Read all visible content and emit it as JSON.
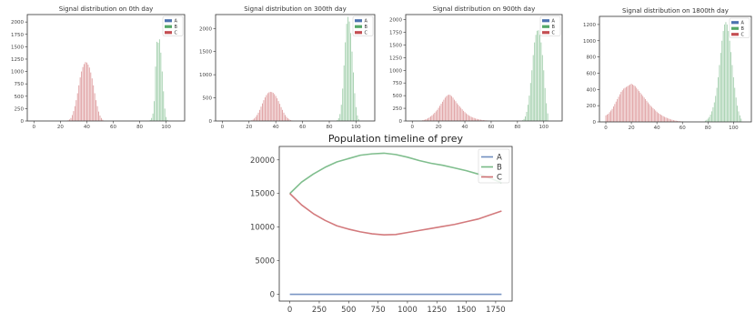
{
  "colors": {
    "A": "#4c72b0",
    "B": "#55a868",
    "C": "#c44e52"
  },
  "chart_data": [
    {
      "type": "bar",
      "title": "Signal distribution on 0th day",
      "legend": {
        "position": "top-right",
        "entries": [
          "A",
          "B",
          "C"
        ]
      },
      "xlim": [
        -5,
        114
      ],
      "ylim": [
        0,
        2150
      ],
      "xticks": [
        0,
        20,
        40,
        60,
        80,
        100
      ],
      "yticks": [
        0,
        250,
        500,
        750,
        1000,
        1250,
        1500,
        1750,
        2000
      ],
      "series": [
        {
          "name": "A",
          "x": [],
          "values": []
        },
        {
          "name": "B",
          "x": [
            88,
            89,
            90,
            91,
            92,
            93,
            94,
            95,
            96,
            97,
            98,
            99,
            100,
            101
          ],
          "values": [
            20,
            60,
            150,
            400,
            1100,
            1600,
            1580,
            1650,
            1380,
            1000,
            600,
            250,
            80,
            20
          ]
        },
        {
          "name": "C",
          "x": [
            26,
            27,
            28,
            29,
            30,
            31,
            32,
            33,
            34,
            35,
            36,
            37,
            38,
            39,
            40,
            41,
            42,
            43,
            44,
            45,
            46,
            47,
            48,
            49,
            50,
            51,
            52
          ],
          "values": [
            15,
            30,
            60,
            120,
            200,
            300,
            420,
            560,
            720,
            880,
            1000,
            1090,
            1150,
            1190,
            1180,
            1140,
            1080,
            980,
            860,
            720,
            560,
            420,
            300,
            190,
            110,
            60,
            25
          ]
        }
      ]
    },
    {
      "type": "bar",
      "title": "Signal distribution on 300th day",
      "legend": {
        "position": "top-right",
        "entries": [
          "A",
          "B",
          "C"
        ]
      },
      "xlim": [
        -5,
        114
      ],
      "ylim": [
        0,
        2300
      ],
      "xticks": [
        0,
        20,
        40,
        60,
        80,
        100
      ],
      "yticks": [
        0,
        500,
        1000,
        1500,
        2000
      ],
      "series": [
        {
          "name": "A",
          "x": [],
          "values": []
        },
        {
          "name": "B",
          "x": [
            86,
            87,
            88,
            89,
            90,
            91,
            92,
            93,
            94,
            95,
            96,
            97,
            98,
            99,
            100,
            101,
            102
          ],
          "values": [
            20,
            60,
            150,
            350,
            700,
            1200,
            1700,
            2100,
            2250,
            2150,
            1900,
            1500,
            1050,
            600,
            300,
            120,
            40
          ]
        },
        {
          "name": "C",
          "x": [
            22,
            23,
            24,
            25,
            26,
            27,
            28,
            29,
            30,
            31,
            32,
            33,
            34,
            35,
            36,
            37,
            38,
            39,
            40,
            41,
            42,
            43,
            44,
            45,
            46,
            47,
            48,
            49,
            50,
            51,
            52
          ],
          "values": [
            15,
            30,
            55,
            90,
            130,
            180,
            240,
            310,
            380,
            450,
            510,
            560,
            600,
            620,
            630,
            625,
            610,
            580,
            540,
            490,
            430,
            370,
            300,
            240,
            180,
            130,
            90,
            60,
            35,
            20,
            10
          ]
        }
      ]
    },
    {
      "type": "bar",
      "title": "Signal distribution on 900th day",
      "legend": {
        "position": "top-right",
        "entries": [
          "A",
          "B",
          "C"
        ]
      },
      "xlim": [
        -5,
        114
      ],
      "ylim": [
        0,
        2100
      ],
      "xticks": [
        0,
        20,
        40,
        60,
        80,
        100
      ],
      "yticks": [
        0,
        250,
        500,
        750,
        1000,
        1250,
        1500,
        1750,
        2000
      ],
      "series": [
        {
          "name": "A",
          "x": [],
          "values": []
        },
        {
          "name": "B",
          "x": [
            84,
            85,
            86,
            87,
            88,
            89,
            90,
            91,
            92,
            93,
            94,
            95,
            96,
            97,
            98,
            99,
            100,
            101,
            102,
            103
          ],
          "values": [
            15,
            40,
            90,
            180,
            320,
            500,
            750,
            1000,
            1300,
            1550,
            1700,
            1780,
            1790,
            1700,
            1550,
            1300,
            1000,
            650,
            350,
            150
          ]
        },
        {
          "name": "C",
          "x": [
            8,
            9,
            10,
            11,
            12,
            13,
            14,
            15,
            16,
            17,
            18,
            19,
            20,
            21,
            22,
            23,
            24,
            25,
            26,
            27,
            28,
            29,
            30,
            31,
            32,
            33,
            34,
            35,
            36,
            37,
            38,
            39,
            40,
            41,
            42,
            43,
            44,
            45,
            46,
            47,
            48,
            49,
            50,
            51,
            52,
            53,
            54,
            55,
            56,
            57,
            58
          ],
          "values": [
            15,
            20,
            30,
            40,
            55,
            70,
            90,
            110,
            135,
            160,
            190,
            220,
            260,
            300,
            340,
            380,
            420,
            460,
            490,
            510,
            520,
            510,
            490,
            460,
            420,
            390,
            350,
            320,
            290,
            260,
            230,
            200,
            175,
            150,
            130,
            110,
            95,
            80,
            70,
            60,
            50,
            42,
            35,
            30,
            25,
            20,
            18,
            15,
            12,
            10,
            8
          ]
        }
      ]
    },
    {
      "type": "bar",
      "title": "Signal distribution on 1800th day",
      "legend": {
        "position": "top-right",
        "entries": [
          "A",
          "B",
          "C"
        ]
      },
      "xlim": [
        -5,
        114
      ],
      "ylim": [
        0,
        1300
      ],
      "xticks": [
        0,
        20,
        40,
        60,
        80,
        100
      ],
      "yticks": [
        0,
        200,
        400,
        600,
        800,
        1000,
        1200
      ],
      "series": [
        {
          "name": "A",
          "x": [],
          "values": []
        },
        {
          "name": "B",
          "x": [
            78,
            79,
            80,
            81,
            82,
            83,
            84,
            85,
            86,
            87,
            88,
            89,
            90,
            91,
            92,
            93,
            94,
            95,
            96,
            97,
            98,
            99,
            100,
            101,
            102,
            103,
            104,
            105,
            106
          ],
          "values": [
            15,
            25,
            40,
            60,
            90,
            130,
            180,
            240,
            320,
            420,
            550,
            700,
            850,
            1000,
            1120,
            1200,
            1230,
            1200,
            1120,
            1000,
            860,
            700,
            550,
            420,
            300,
            200,
            130,
            80,
            40
          ]
        },
        {
          "name": "C",
          "x": [
            0,
            1,
            2,
            3,
            4,
            5,
            6,
            7,
            8,
            9,
            10,
            11,
            12,
            13,
            14,
            15,
            16,
            17,
            18,
            19,
            20,
            21,
            22,
            23,
            24,
            25,
            26,
            27,
            28,
            29,
            30,
            31,
            32,
            33,
            34,
            35,
            36,
            37,
            38,
            39,
            40,
            41,
            42,
            43,
            44,
            45,
            46,
            47,
            48,
            49,
            50,
            51,
            52,
            53,
            54,
            55,
            56,
            57,
            58,
            59,
            60
          ],
          "values": [
            80,
            90,
            100,
            120,
            140,
            160,
            190,
            220,
            250,
            280,
            310,
            340,
            370,
            390,
            410,
            420,
            430,
            440,
            450,
            460,
            470,
            460,
            450,
            440,
            420,
            400,
            380,
            360,
            340,
            320,
            300,
            280,
            260,
            240,
            220,
            200,
            185,
            170,
            155,
            140,
            125,
            110,
            100,
            90,
            80,
            70,
            62,
            55,
            48,
            42,
            36,
            30,
            26,
            22,
            18,
            15,
            12,
            10,
            8,
            6,
            5
          ]
        }
      ]
    },
    {
      "type": "line",
      "title": "Population timeline of prey",
      "legend": {
        "position": "top-right",
        "entries": [
          "A",
          "B",
          "C"
        ]
      },
      "xlim": [
        -90,
        1890
      ],
      "ylim": [
        -1000,
        22000
      ],
      "xticks": [
        0,
        250,
        500,
        750,
        1000,
        1250,
        1500,
        1750
      ],
      "yticks": [
        0,
        5000,
        10000,
        15000,
        20000
      ],
      "x": [
        0,
        100,
        200,
        300,
        400,
        500,
        600,
        700,
        800,
        900,
        1000,
        1100,
        1200,
        1300,
        1400,
        1500,
        1600,
        1700,
        1800
      ],
      "series": [
        {
          "name": "A",
          "values": [
            0,
            0,
            0,
            0,
            0,
            0,
            0,
            0,
            0,
            0,
            0,
            0,
            0,
            0,
            0,
            0,
            0,
            0,
            0
          ]
        },
        {
          "name": "B",
          "values": [
            15000,
            16700,
            17900,
            18900,
            19700,
            20200,
            20700,
            20900,
            21000,
            20800,
            20400,
            19900,
            19500,
            19200,
            18800,
            18400,
            17900,
            17300,
            16600
          ]
        },
        {
          "name": "C",
          "values": [
            15000,
            13300,
            12000,
            11000,
            10200,
            9700,
            9300,
            9000,
            8850,
            8900,
            9200,
            9500,
            9800,
            10100,
            10400,
            10800,
            11200,
            11800,
            12400
          ]
        }
      ]
    }
  ]
}
